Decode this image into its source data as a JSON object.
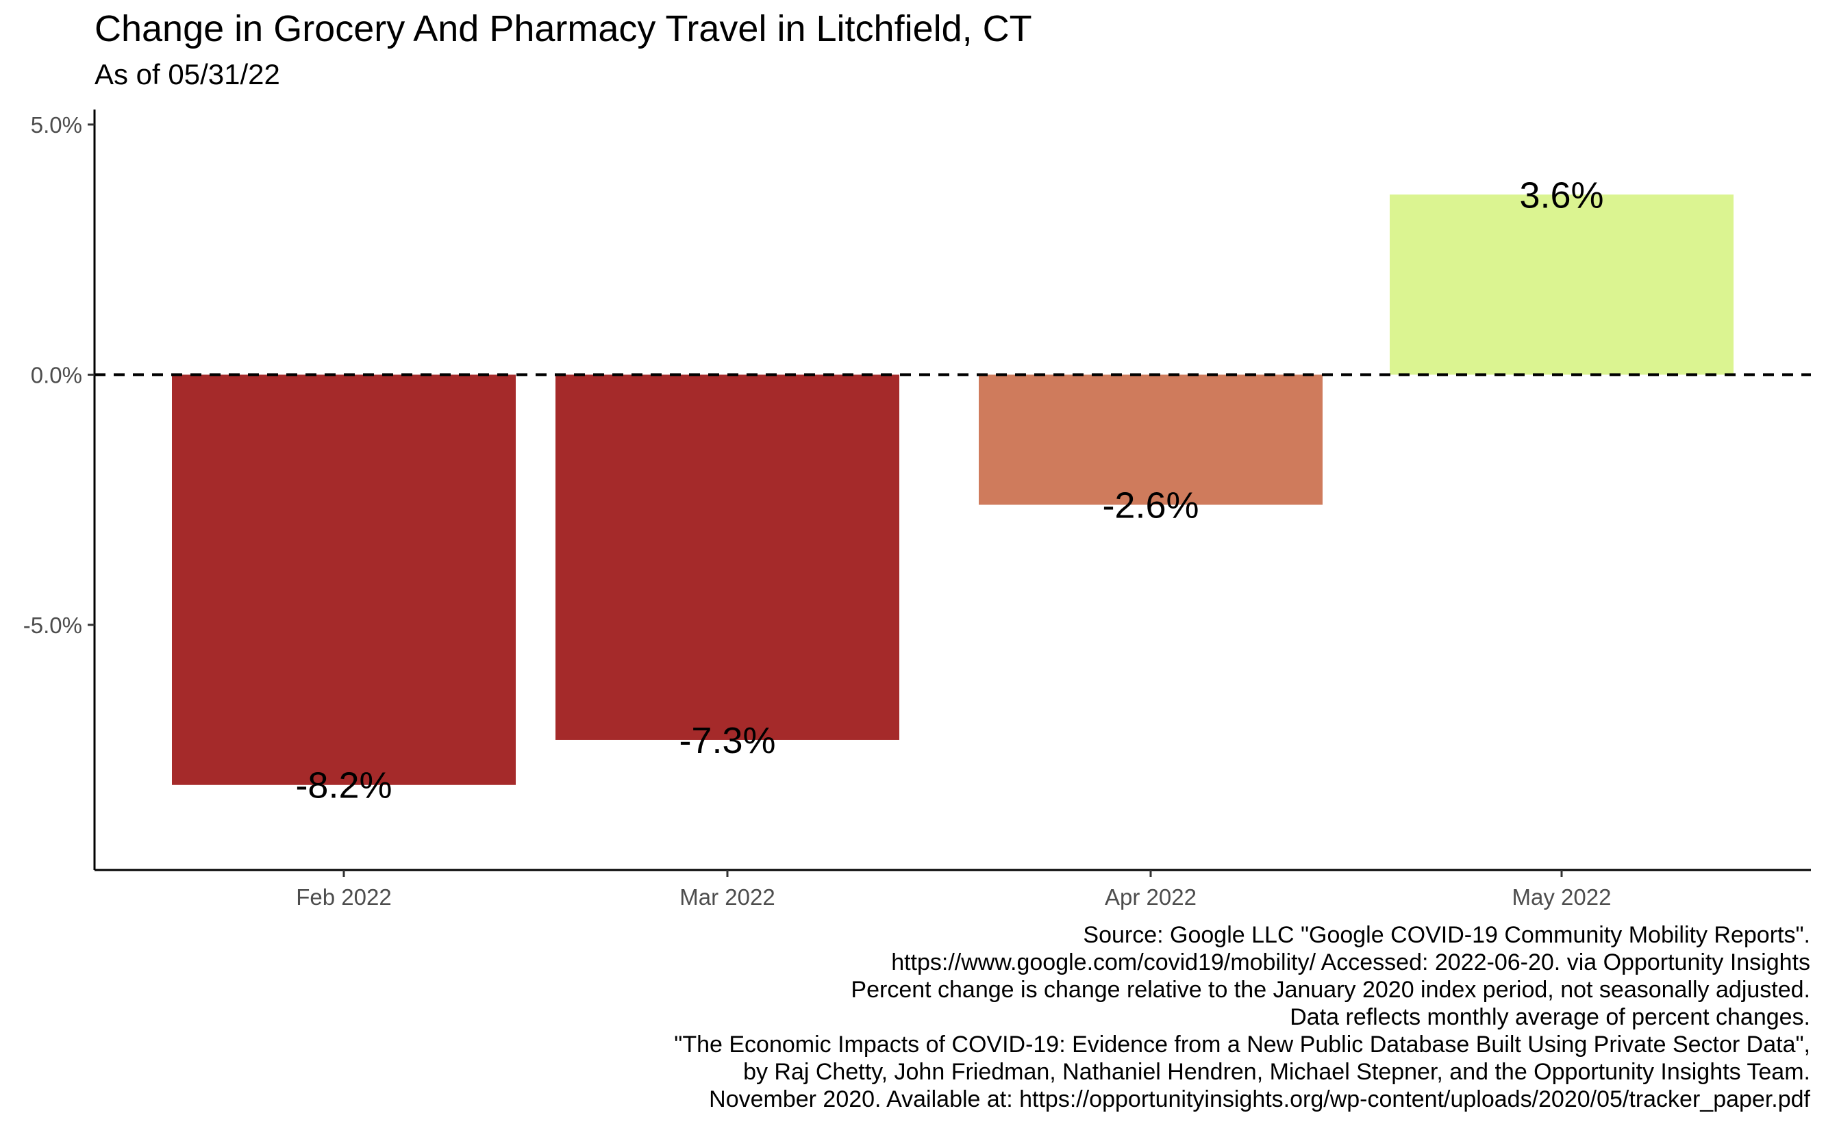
{
  "chart_data": {
    "type": "bar",
    "title": "Change in Grocery And Pharmacy Travel in Litchfield, CT",
    "subtitle": "As of 05/31/22",
    "xlabel": "",
    "ylabel": "",
    "categories": [
      "Feb 2022",
      "Mar 2022",
      "Apr 2022",
      "May 2022"
    ],
    "values": [
      -8.2,
      -7.3,
      -2.6,
      3.6
    ],
    "value_labels": [
      "-8.2%",
      "-7.3%",
      "-2.6%",
      "3.6%"
    ],
    "bar_colors": [
      "#a52a2a",
      "#a52a2a",
      "#cf7b5c",
      "#dbf491"
    ],
    "ylim": [
      -9.9,
      5.3
    ],
    "y_ticks": [
      5.0,
      0.0,
      -5.0
    ],
    "y_tick_labels": [
      "5.0%",
      "0.0%",
      "-5.0%"
    ],
    "reference_line": {
      "y": 0,
      "style": "dashed"
    },
    "grid": false,
    "legend": "none"
  },
  "caption": [
    "Source: Google LLC \"Google COVID-19 Community Mobility Reports\".",
    "https://www.google.com/covid19/mobility/ Accessed: 2022-06-20. via Opportunity Insights",
    "Percent change is change relative to the January 2020 index period, not seasonally adjusted.",
    "Data reflects monthly average of percent changes.",
    "\"The Economic Impacts of COVID-19: Evidence from a New Public Database Built Using Private Sector Data\",",
    "by Raj Chetty, John Friedman, Nathaniel Hendren, Michael Stepner, and the Opportunity Insights Team.",
    "November 2020. Available at: https://opportunityinsights.org/wp-content/uploads/2020/05/tracker_paper.pdf"
  ]
}
